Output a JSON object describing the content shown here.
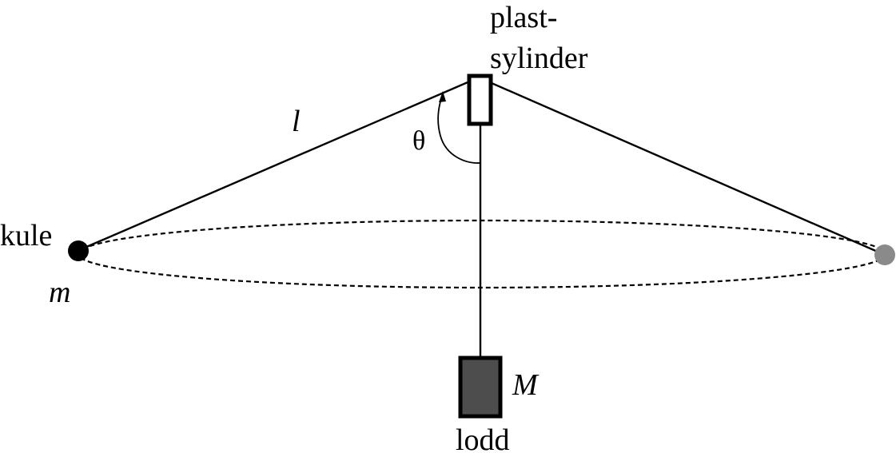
{
  "labels": {
    "cylinder_line1": "plast-",
    "cylinder_line2": "sylinder",
    "string_length": "l",
    "angle": "θ",
    "ball": "kule",
    "ball_mass": "m",
    "weight_mass": "M",
    "weight": "lodd"
  },
  "colors": {
    "line": "#000000",
    "ball": "#000000",
    "ball_ghost": "#8a8a8a",
    "weight_fill": "#4d4d4d",
    "background": "#ffffff"
  }
}
